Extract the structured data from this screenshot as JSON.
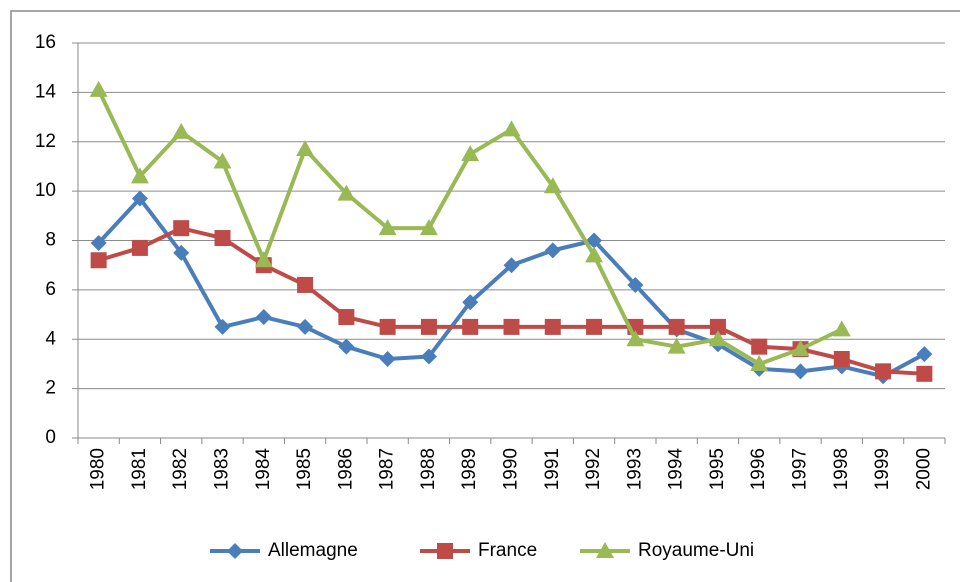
{
  "chart_data": {
    "type": "line",
    "categories": [
      "1980",
      "1981",
      "1982",
      "1983",
      "1984",
      "1985",
      "1986",
      "1987",
      "1988",
      "1989",
      "1990",
      "1991",
      "1992",
      "1993",
      "1994",
      "1995",
      "1996",
      "1997",
      "1998",
      "1999",
      "2000"
    ],
    "series": [
      {
        "name": "Allemagne",
        "color": "#4a7ebb",
        "marker": "diamond",
        "values": [
          7.9,
          9.7,
          7.5,
          4.5,
          4.9,
          4.5,
          3.7,
          3.2,
          3.3,
          5.5,
          7.0,
          7.6,
          8.0,
          6.2,
          4.4,
          3.8,
          2.8,
          2.7,
          2.9,
          2.5,
          3.4
        ]
      },
      {
        "name": "France",
        "color": "#be4b48",
        "marker": "square",
        "values": [
          7.2,
          7.7,
          8.5,
          8.1,
          7.0,
          6.2,
          4.9,
          4.5,
          4.5,
          4.5,
          4.5,
          4.5,
          4.5,
          4.5,
          4.5,
          4.5,
          3.7,
          3.6,
          3.2,
          2.7,
          2.6
        ]
      },
      {
        "name": "Royaume-Uni",
        "color": "#98b954",
        "marker": "triangle",
        "values": [
          14.1,
          10.6,
          12.4,
          11.2,
          7.2,
          11.7,
          9.9,
          8.5,
          8.5,
          11.5,
          12.5,
          10.2,
          7.4,
          4.0,
          3.7,
          4.0,
          3.0,
          3.6,
          4.4,
          null,
          null
        ]
      }
    ],
    "ylim": [
      0,
      16
    ],
    "yticks": [
      0,
      2,
      4,
      6,
      8,
      10,
      12,
      14,
      16
    ],
    "grid": true,
    "legend": "bottom"
  }
}
